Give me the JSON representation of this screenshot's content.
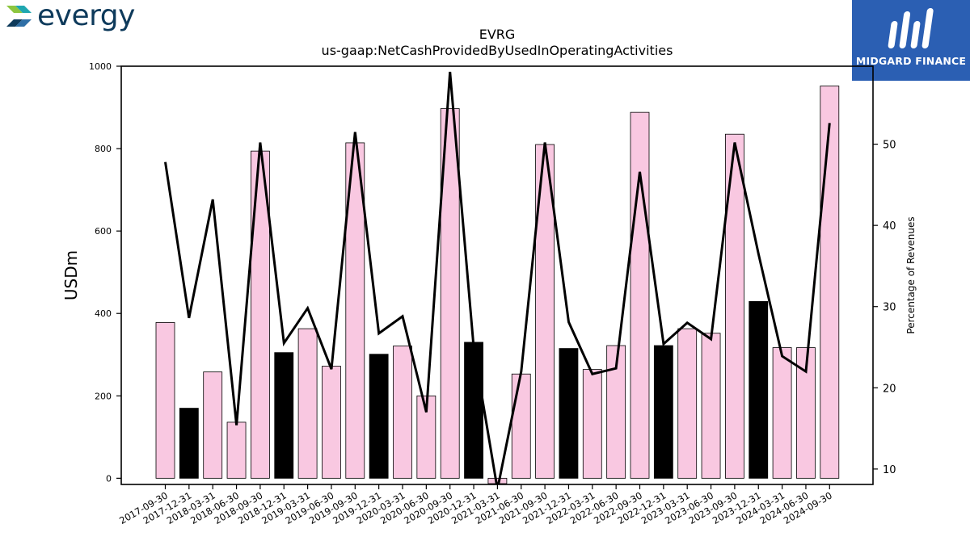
{
  "logos": {
    "left": {
      "wordmark": "evergy"
    },
    "right": {
      "wordmark": "MIDGARD FINANCE"
    }
  },
  "chart_data": {
    "type": "bar",
    "title": "EVRG",
    "subtitle": "us-gaap:NetCashProvidedByUsedInOperatingActivities",
    "ylabel": "USDm",
    "y2label": "Percentage of Revenues",
    "ylim": [
      -15,
      1000
    ],
    "y2lim": [
      8.1,
      59.6
    ],
    "yticks": [
      0,
      200,
      400,
      600,
      800,
      1000
    ],
    "y2ticks": [
      10,
      20,
      30,
      40,
      50
    ],
    "categories": [
      "2017-09-30",
      "2017-12-31",
      "2018-03-31",
      "2018-06-30",
      "2018-09-30",
      "2018-12-31",
      "2019-03-31",
      "2019-06-30",
      "2019-09-30",
      "2019-12-31",
      "2020-03-31",
      "2020-06-30",
      "2020-09-30",
      "2020-12-31",
      "2021-03-31",
      "2021-06-30",
      "2021-09-30",
      "2021-12-31",
      "2022-03-31",
      "2022-06-30",
      "2022-09-30",
      "2022-12-31",
      "2023-03-31",
      "2023-06-30",
      "2023-09-30",
      "2023-12-31",
      "2024-03-31",
      "2024-06-30",
      "2024-09-30"
    ],
    "series": [
      {
        "type": "bar",
        "values": [
          378,
          170,
          258,
          136,
          794,
          305,
          363,
          272,
          814,
          301,
          321,
          200,
          897,
          330,
          -13,
          253,
          810,
          315,
          264,
          322,
          888,
          322,
          363,
          352,
          835,
          429,
          317,
          317,
          952
        ],
        "bar_colors": [
          "#f9c8e1",
          "#000000",
          "#f9c8e1",
          "#f9c8e1",
          "#f9c8e1",
          "#000000",
          "#f9c8e1",
          "#f9c8e1",
          "#f9c8e1",
          "#000000",
          "#f9c8e1",
          "#f9c8e1",
          "#f9c8e1",
          "#000000",
          "#f9c8e1",
          "#f9c8e1",
          "#f9c8e1",
          "#000000",
          "#f9c8e1",
          "#f9c8e1",
          "#f9c8e1",
          "#000000",
          "#f9c8e1",
          "#f9c8e1",
          "#f9c8e1",
          "#000000",
          "#f9c8e1",
          "#f9c8e1",
          "#f9c8e1"
        ]
      },
      {
        "type": "line",
        "axis": "right",
        "color": "#000000",
        "values": [
          47.8,
          28.6,
          43.2,
          15.4,
          50.2,
          25.5,
          29.8,
          22.3,
          51.5,
          26.7,
          28.8,
          17.0,
          58.9,
          25.0,
          7.5,
          22.0,
          50.2,
          28.1,
          21.7,
          22.4,
          46.6,
          25.4,
          28.0,
          26.0,
          50.2,
          36.5,
          23.9,
          22.0,
          52.6
        ]
      }
    ],
    "grid": false,
    "legend": "none"
  }
}
